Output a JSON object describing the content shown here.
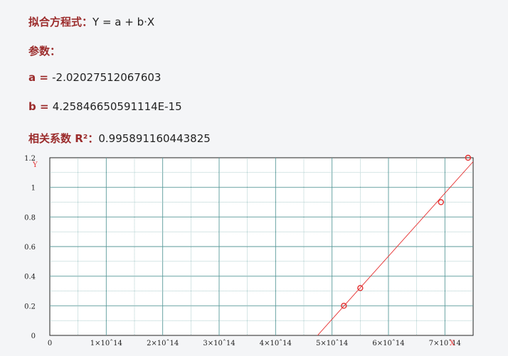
{
  "fit": {
    "equation_label": "拟合方程式：",
    "equation": "Y = a + b·X",
    "params_label": "参数：",
    "a_label": "a = ",
    "a_value": "-2.02027512067603",
    "b_label": "b = ",
    "b_value": "4.25846650591114E-15",
    "r2_label": "相关系数 R²：",
    "r2_value": "0.995891160443825"
  },
  "colors": {
    "accent": "#9b2b2b",
    "series": "#e53030",
    "grid": "#5a9a9a"
  },
  "chart_data": {
    "type": "scatter",
    "title": "",
    "xlabel": "X",
    "ylabel": "Y",
    "xlim": [
      0,
      750000000000000.0
    ],
    "ylim": [
      0,
      1.2
    ],
    "grid": true,
    "x_ticks": [
      0,
      100000000000000.0,
      200000000000000.0,
      300000000000000.0,
      400000000000000.0,
      500000000000000.0,
      600000000000000.0,
      700000000000000.0
    ],
    "x_tick_labels": [
      "0",
      "1×10ˆ14",
      "2×10ˆ14",
      "3×10ˆ14",
      "4×10ˆ14",
      "5×10ˆ14",
      "6×10ˆ14",
      "7×10ˆ14"
    ],
    "y_ticks": [
      0,
      0.2,
      0.4,
      0.6,
      0.8,
      1,
      1.2
    ],
    "y_tick_labels": [
      "0",
      "0.2",
      "0.4",
      "0.6",
      "0.8",
      "1",
      "1.2"
    ],
    "points": [
      {
        "x": 521000000000000.0,
        "y": 0.2
      },
      {
        "x": 550000000000000.0,
        "y": 0.32
      },
      {
        "x": 693000000000000.0,
        "y": 0.9
      },
      {
        "x": 741000000000000.0,
        "y": 1.2
      }
    ],
    "fit_line": {
      "a": -2.02027512067603,
      "b": 4.25846650591114e-15
    }
  }
}
